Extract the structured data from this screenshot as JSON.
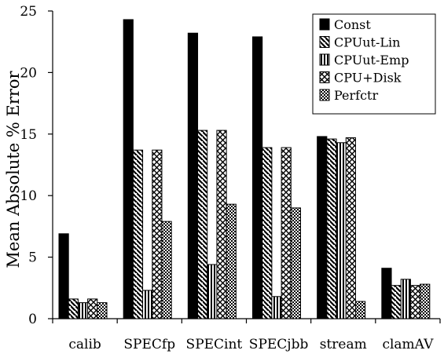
{
  "chart_data": {
    "type": "bar",
    "title": "",
    "xlabel": "",
    "ylabel": "Mean Absolute % Error",
    "ylim": [
      0,
      25
    ],
    "yticks": [
      0,
      5,
      10,
      15,
      20,
      25
    ],
    "grid": false,
    "legend_position": "top-right",
    "categories": [
      "calib",
      "SPECfp",
      "SPECint",
      "SPECjbb",
      "stream",
      "clamAV"
    ],
    "series": [
      {
        "name": "Const",
        "pattern": "solid",
        "values": [
          6.9,
          24.3,
          23.2,
          22.9,
          14.8,
          4.1
        ]
      },
      {
        "name": "CPUut-Lin",
        "pattern": "diagonal",
        "values": [
          1.6,
          13.7,
          15.3,
          13.9,
          14.6,
          2.7
        ]
      },
      {
        "name": "CPUut-Emp",
        "pattern": "vertical",
        "values": [
          1.3,
          2.3,
          4.4,
          1.8,
          14.3,
          3.2
        ]
      },
      {
        "name": "CPU+Disk",
        "pattern": "crosshatch",
        "values": [
          1.6,
          13.7,
          15.3,
          13.9,
          14.7,
          2.7
        ]
      },
      {
        "name": "Perfctr",
        "pattern": "dots",
        "values": [
          1.3,
          7.9,
          9.3,
          9.0,
          1.4,
          2.8
        ]
      }
    ]
  }
}
